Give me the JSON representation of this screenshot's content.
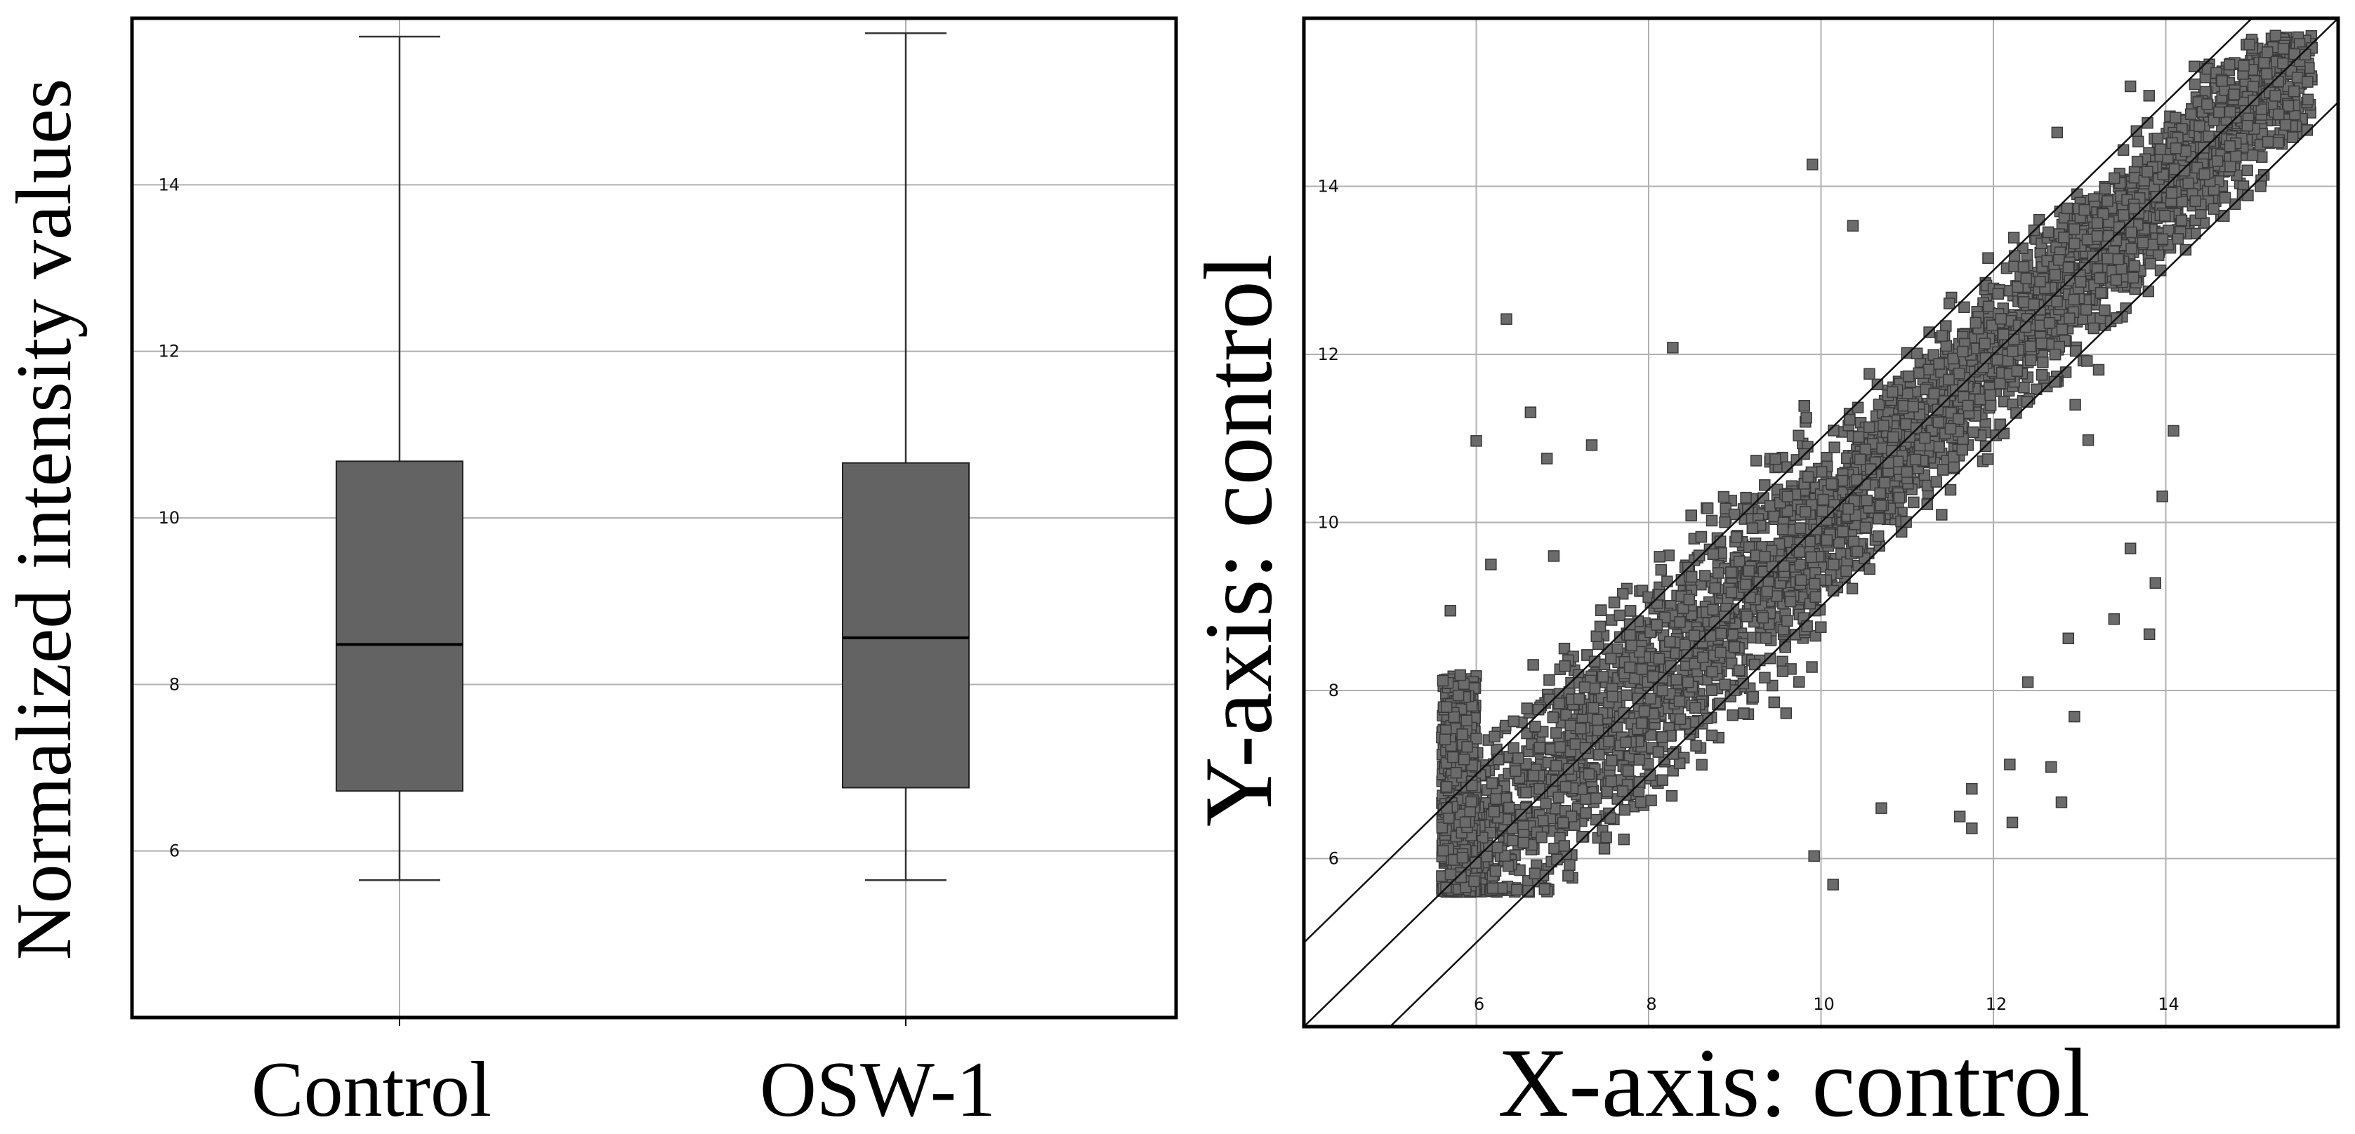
{
  "chart_data": [
    {
      "type": "box",
      "ylabel": "Normalized intensity values",
      "xlabel": "",
      "ylim": [
        4,
        16
      ],
      "yticks": [
        6,
        8,
        10,
        12,
        14
      ],
      "grid": true,
      "categories": [
        "Control",
        "OSW-1"
      ],
      "boxes": [
        {
          "category": "Control",
          "whisker_low": 5.65,
          "q1": 6.72,
          "median": 8.48,
          "q3": 10.68,
          "whisker_high": 15.78
        },
        {
          "category": "OSW-1",
          "whisker_low": 5.65,
          "q1": 6.76,
          "median": 8.56,
          "q3": 10.66,
          "whisker_high": 15.82
        }
      ],
      "colors": {
        "box": "#636363",
        "line": "#333333",
        "grid": "#b0b0b0"
      }
    },
    {
      "type": "scatter",
      "xlabel": "X-axis: control",
      "ylabel": "Y-axis: control",
      "xlim": [
        4,
        16
      ],
      "ylim": [
        4,
        16
      ],
      "xticks": [
        6,
        8,
        10,
        12,
        14
      ],
      "yticks": [
        6,
        8,
        10,
        12,
        14
      ],
      "grid": true,
      "reference_lines": [
        {
          "slope": 1,
          "intercept": 1
        },
        {
          "slope": 1,
          "intercept": 0
        },
        {
          "slope": 1,
          "intercept": -1
        }
      ],
      "bulk": {
        "x_min": 5.6,
        "x_max": 15.7,
        "y_floor": 5.6,
        "spread": 1.0
      },
      "outliers": [
        [
          9.9,
          14.26
        ],
        [
          10.37,
          13.53
        ],
        [
          6.35,
          12.42
        ],
        [
          8.28,
          12.08
        ],
        [
          6.63,
          11.31
        ],
        [
          6.0,
          10.97
        ],
        [
          6.82,
          10.76
        ],
        [
          14.09,
          11.09
        ],
        [
          13.96,
          10.31
        ],
        [
          13.59,
          9.69
        ],
        [
          13.88,
          9.28
        ],
        [
          13.4,
          8.85
        ],
        [
          13.81,
          8.67
        ],
        [
          12.87,
          8.62
        ],
        [
          12.4,
          8.1
        ],
        [
          12.94,
          7.69
        ],
        [
          12.19,
          7.12
        ],
        [
          12.67,
          7.09
        ],
        [
          12.79,
          6.67
        ],
        [
          12.22,
          6.43
        ],
        [
          11.75,
          6.83
        ],
        [
          11.61,
          6.5
        ],
        [
          11.75,
          6.36
        ],
        [
          10.14,
          5.69
        ],
        [
          9.92,
          6.03
        ],
        [
          12.74,
          14.64
        ],
        [
          13.59,
          15.19
        ],
        [
          7.34,
          10.92
        ],
        [
          6.17,
          9.5
        ],
        [
          6.9,
          9.6
        ],
        [
          5.7,
          8.95
        ],
        [
          13.1,
          10.98
        ],
        [
          12.95,
          11.4
        ],
        [
          14.6,
          14.3
        ],
        [
          15.1,
          14.0
        ],
        [
          10.7,
          6.6
        ]
      ],
      "colors": {
        "point": "#6b6b6b",
        "point_edge": "#3a3a3a",
        "line": "#111111",
        "grid": "#b0b0b0"
      }
    }
  ]
}
